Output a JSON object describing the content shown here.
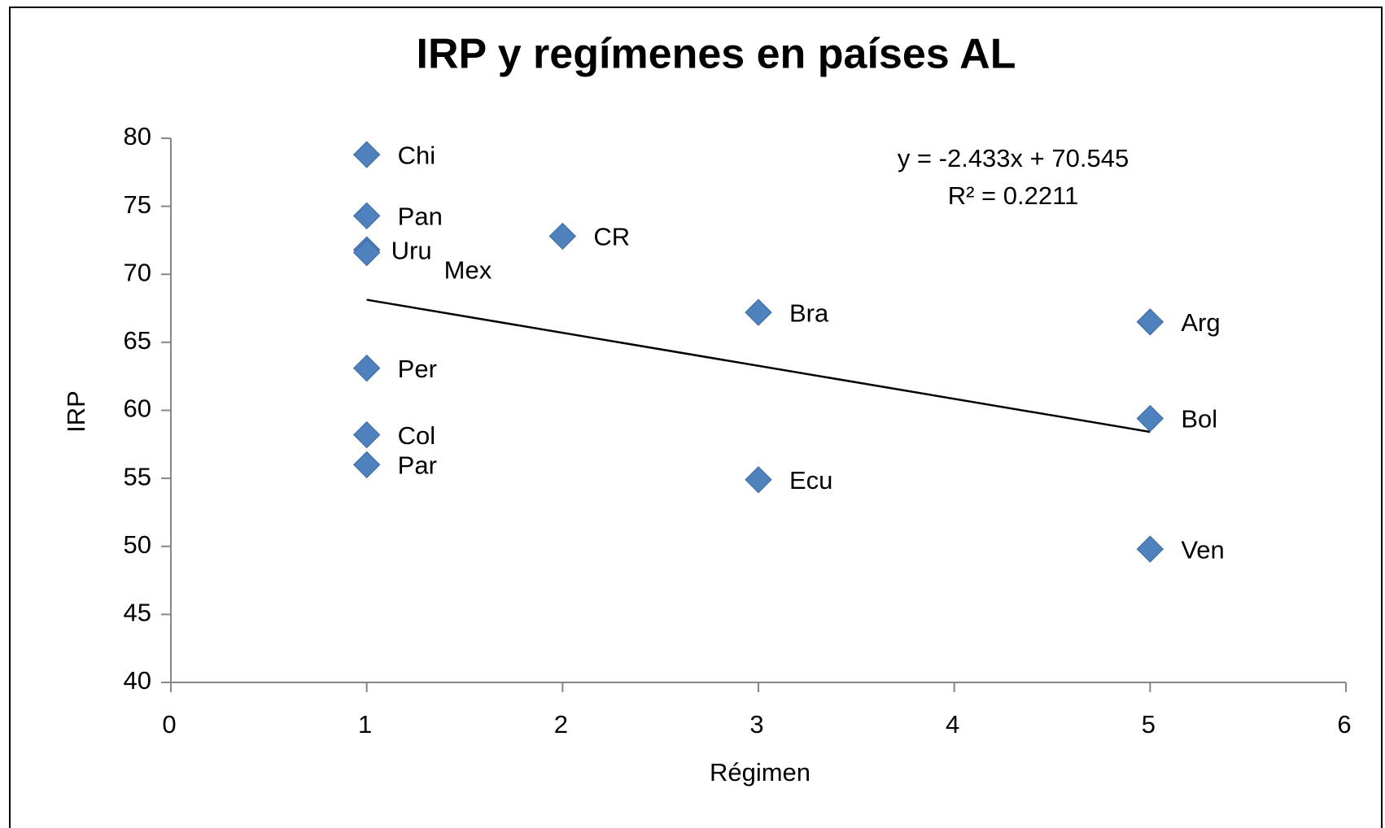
{
  "chart_data": {
    "type": "scatter",
    "title": "IRP y regímenes en países AL",
    "xlabel": "Régimen",
    "ylabel": "IRP",
    "x": [
      1,
      1,
      1,
      1,
      2,
      3,
      5,
      1,
      5,
      1,
      1,
      3,
      5
    ],
    "values": [
      78.8,
      74.3,
      71.8,
      71.6,
      72.8,
      67.2,
      66.5,
      63.1,
      59.4,
      58.2,
      56.0,
      54.9,
      49.8
    ],
    "point_labels": [
      "Chi",
      "Pan",
      "Uru",
      "Mex",
      "CR",
      "Bra",
      "Arg",
      "Per",
      "Bol",
      "Col",
      "Par",
      "Ecu",
      "Ven"
    ],
    "color": "#4f81bd",
    "trendline": true,
    "annotations": [
      "y = -2.433x + 70.545",
      "R² = 0.2211"
    ],
    "xlim": [
      0,
      6
    ],
    "xticks": [
      0,
      1,
      2,
      3,
      4,
      5,
      6
    ],
    "ylim": [
      40,
      80
    ],
    "yticks": [
      40,
      45,
      50,
      55,
      60,
      65,
      70,
      75,
      80
    ]
  }
}
